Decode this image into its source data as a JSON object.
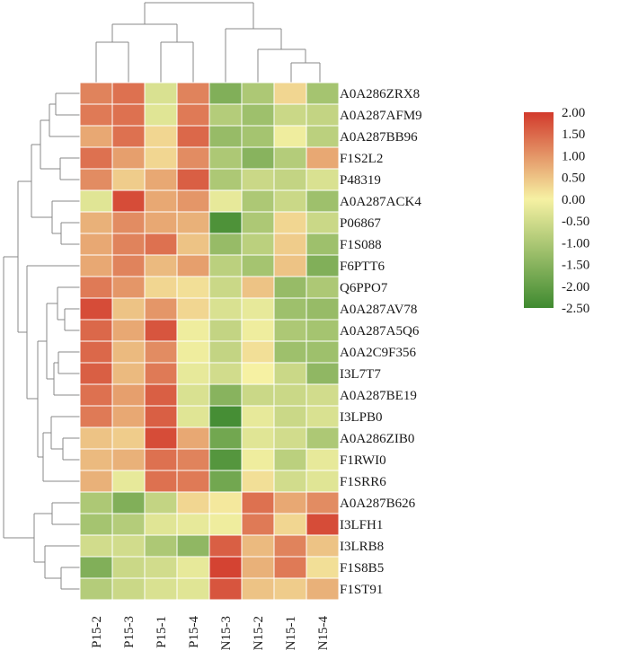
{
  "chart_data": {
    "type": "heatmap",
    "title": "",
    "rows": [
      "A0A286ZRX8",
      "A0A287AFM9",
      "A0A287BB96",
      "F1S2L2",
      "P48319",
      "A0A287ACK4",
      "P06867",
      "F1S088",
      "F6PTT6",
      "Q6PPO7",
      "A0A287AV78",
      "A0A287A5Q6",
      "A0A2C9F356",
      "I3L7T7",
      "A0A287BE19",
      "I3LPB0",
      "A0A286ZIB0",
      "F1RWI0",
      "F1SRR6",
      "A0A287B626",
      "I3LFH1",
      "I3LRB8",
      "F1S8B5",
      "F1ST91"
    ],
    "columns": [
      "P15-2",
      "P15-3",
      "P15-1",
      "P15-4",
      "N15-3",
      "N15-2",
      "N15-1",
      "N15-4"
    ],
    "values": [
      [
        1.2,
        1.4,
        -0.4,
        1.2,
        -1.6,
        -1.0,
        0.3,
        -1.1
      ],
      [
        1.3,
        1.4,
        -0.3,
        1.3,
        -0.9,
        -1.2,
        -0.6,
        -0.7
      ],
      [
        0.8,
        1.4,
        0.3,
        1.5,
        -1.3,
        -1.1,
        -0.1,
        -0.8
      ],
      [
        1.4,
        0.9,
        0.3,
        1.1,
        -1.0,
        -1.5,
        -0.9,
        0.8
      ],
      [
        1.1,
        0.4,
        0.8,
        1.6,
        -1.0,
        -0.6,
        -0.7,
        -0.4
      ],
      [
        -0.3,
        1.8,
        0.8,
        1.0,
        -0.2,
        -1.0,
        -0.6,
        -1.2
      ],
      [
        0.7,
        1.1,
        0.8,
        0.7,
        -2.3,
        -1.0,
        0.3,
        -0.6
      ],
      [
        0.8,
        1.2,
        1.4,
        0.5,
        -1.3,
        -0.8,
        0.4,
        -1.2
      ],
      [
        0.8,
        1.2,
        0.6,
        0.9,
        -0.8,
        -1.1,
        0.5,
        -1.6
      ],
      [
        1.3,
        1.0,
        0.3,
        0.2,
        -0.6,
        0.5,
        -1.3,
        -1.0
      ],
      [
        1.8,
        0.5,
        1.0,
        0.3,
        -0.4,
        -0.2,
        -1.2,
        -1.3
      ],
      [
        1.5,
        0.8,
        1.7,
        -0.1,
        -0.7,
        -0.1,
        -1.0,
        -1.1
      ],
      [
        1.5,
        0.6,
        1.1,
        -0.1,
        -0.7,
        0.2,
        -1.2,
        -1.2
      ],
      [
        1.6,
        0.6,
        1.3,
        -0.2,
        -0.5,
        0.0,
        -0.6,
        -1.4
      ],
      [
        1.4,
        0.9,
        1.6,
        -0.4,
        -1.5,
        -0.6,
        -0.6,
        -0.5
      ],
      [
        1.3,
        0.8,
        1.6,
        -0.3,
        -2.4,
        -0.2,
        -0.6,
        -0.4
      ],
      [
        0.5,
        0.4,
        1.8,
        0.8,
        -1.8,
        -0.3,
        -0.5,
        -1.0
      ],
      [
        0.6,
        0.7,
        1.4,
        1.2,
        -2.2,
        -0.1,
        -0.8,
        -0.2
      ],
      [
        0.7,
        -0.2,
        1.4,
        1.3,
        -1.8,
        0.2,
        -0.5,
        -0.3
      ],
      [
        -1.0,
        -1.6,
        -0.7,
        0.3,
        0.1,
        1.4,
        0.8,
        1.1
      ],
      [
        -1.1,
        -0.9,
        -0.3,
        -0.2,
        -0.1,
        1.3,
        0.3,
        1.8
      ],
      [
        -0.5,
        -0.5,
        -1.0,
        -1.4,
        1.6,
        0.6,
        1.2,
        0.5
      ],
      [
        -1.6,
        -0.6,
        -0.5,
        -0.2,
        1.9,
        0.7,
        1.3,
        0.2
      ],
      [
        -0.9,
        -0.6,
        -0.4,
        -0.3,
        1.7,
        0.5,
        0.4,
        0.7
      ]
    ],
    "scale": {
      "min": -2.5,
      "max": 2.0,
      "ticks": [
        "2.00",
        "1.50",
        "1.00",
        "0.50",
        "0.00",
        "-0.50",
        "-1.00",
        "-1.50",
        "-2.00",
        "-2.50"
      ],
      "tick_values": [
        2.0,
        1.5,
        1.0,
        0.5,
        0.0,
        -0.5,
        -1.0,
        -1.5,
        -2.0,
        -2.5
      ],
      "colors": {
        "low": "#3f8a30",
        "mid": "#f6f1a3",
        "high": "#d23a2c"
      }
    },
    "legend_position": "right",
    "has_row_dendrogram": true,
    "has_column_dendrogram": true
  }
}
